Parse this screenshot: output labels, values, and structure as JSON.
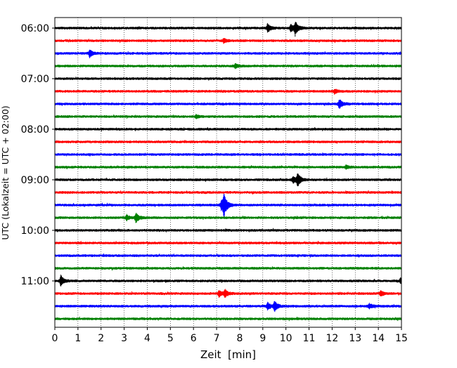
{
  "chart_data": {
    "type": "line",
    "title": "",
    "xlabel": "Zeit  [min]",
    "ylabel": "UTC (Lokalzeit = UTC + 02:00)",
    "xlim": [
      0,
      15
    ],
    "x_ticks": [
      0,
      1,
      2,
      3,
      4,
      5,
      6,
      7,
      8,
      9,
      10,
      11,
      12,
      13,
      14,
      15
    ],
    "x_tick_labels": [
      "0",
      "1",
      "2",
      "3",
      "4",
      "5",
      "6",
      "7",
      "8",
      "9",
      "10",
      "11",
      "12",
      "13",
      "14",
      "15"
    ],
    "y_tick_labels": [
      "06:00",
      "07:00",
      "08:00",
      "09:00",
      "10:00",
      "11:00"
    ],
    "grid": "vertical-dotted",
    "legend": "none",
    "trace_interval_minutes": 15,
    "colors": [
      "#000000",
      "#ff0000",
      "#0000ff",
      "#008000"
    ],
    "traces": [
      {
        "start": "06:00",
        "color": "#000000",
        "events": [
          {
            "t": 9.2,
            "amp": 1.0
          },
          {
            "t": 10.2,
            "amp": 0.9
          },
          {
            "t": 10.4,
            "amp": 1.5
          }
        ]
      },
      {
        "start": "06:15",
        "color": "#ff0000",
        "events": [
          {
            "t": 7.3,
            "amp": 0.5
          }
        ]
      },
      {
        "start": "06:30",
        "color": "#0000ff",
        "events": [
          {
            "t": 1.5,
            "amp": 0.9
          }
        ]
      },
      {
        "start": "06:45",
        "color": "#008000",
        "events": [
          {
            "t": 7.8,
            "amp": 0.5
          }
        ]
      },
      {
        "start": "07:00",
        "color": "#000000",
        "events": []
      },
      {
        "start": "07:15",
        "color": "#ff0000",
        "events": [
          {
            "t": 12.1,
            "amp": 0.5
          }
        ]
      },
      {
        "start": "07:30",
        "color": "#0000ff",
        "events": [
          {
            "t": 12.3,
            "amp": 1.2
          }
        ]
      },
      {
        "start": "07:45",
        "color": "#008000",
        "events": [
          {
            "t": 6.1,
            "amp": 0.4
          }
        ]
      },
      {
        "start": "08:00",
        "color": "#000000",
        "events": []
      },
      {
        "start": "08:15",
        "color": "#ff0000",
        "events": []
      },
      {
        "start": "08:30",
        "color": "#0000ff",
        "events": []
      },
      {
        "start": "08:45",
        "color": "#008000",
        "events": [
          {
            "t": 12.6,
            "amp": 0.4
          }
        ]
      },
      {
        "start": "09:00",
        "color": "#000000",
        "events": [
          {
            "t": 10.3,
            "amp": 0.8
          },
          {
            "t": 10.5,
            "amp": 1.6
          }
        ]
      },
      {
        "start": "09:15",
        "color": "#ff0000",
        "events": []
      },
      {
        "start": "09:30",
        "color": "#0000ff",
        "events": [
          {
            "t": 7.2,
            "amp": 1.0
          },
          {
            "t": 7.3,
            "amp": 2.7
          }
        ]
      },
      {
        "start": "09:45",
        "color": "#008000",
        "events": [
          {
            "t": 3.1,
            "amp": 0.6
          },
          {
            "t": 3.5,
            "amp": 1.1
          }
        ]
      },
      {
        "start": "10:00",
        "color": "#000000",
        "events": []
      },
      {
        "start": "10:15",
        "color": "#ff0000",
        "events": []
      },
      {
        "start": "10:30",
        "color": "#0000ff",
        "events": []
      },
      {
        "start": "10:45",
        "color": "#008000",
        "events": []
      },
      {
        "start": "11:00",
        "color": "#000000",
        "events": [
          {
            "t": 0.25,
            "amp": 1.3
          },
          {
            "t": 14.95,
            "amp": 0.5
          }
        ]
      },
      {
        "start": "11:15",
        "color": "#ff0000",
        "events": [
          {
            "t": 7.1,
            "amp": 0.7
          },
          {
            "t": 7.35,
            "amp": 0.9
          },
          {
            "t": 14.1,
            "amp": 0.6
          }
        ]
      },
      {
        "start": "11:30",
        "color": "#0000ff",
        "events": [
          {
            "t": 9.2,
            "amp": 0.8
          },
          {
            "t": 9.5,
            "amp": 1.2
          },
          {
            "t": 13.6,
            "amp": 0.6
          }
        ]
      },
      {
        "start": "11:45",
        "color": "#008000",
        "events": []
      }
    ]
  }
}
